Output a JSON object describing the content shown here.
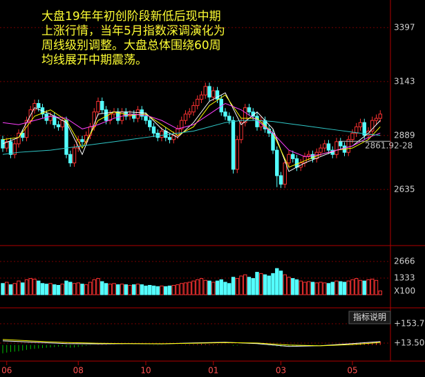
{
  "chart_data": [
    {
      "type": "candlestick",
      "annotation": [
        "大盘19年年初创阶段新低后现中期",
        "上涨行情，当年5月指数深调演化为",
        "周线级别调整。大盘总体围绕60周",
        "均线展开中期震荡。"
      ],
      "ylim": [
        2371,
        3527
      ],
      "yticks": [
        2635,
        2889,
        3143,
        3397
      ],
      "xticks": [
        {
          "value": 1,
          "label": "06"
        },
        {
          "value": 19,
          "label": "08"
        },
        {
          "value": 36,
          "label": "10"
        },
        {
          "value": 53,
          "label": "01"
        },
        {
          "value": 70,
          "label": "03"
        },
        {
          "value": 88,
          "label": "05"
        }
      ],
      "up_color": "#ff3232",
      "down_color": "#54ffff",
      "price_line": {
        "value": 2861.92,
        "label": "2861.92-28"
      },
      "candles": [
        [
          2870,
          2888,
          2812,
          2830
        ],
        [
          2830,
          2878,
          2812,
          2860
        ],
        [
          2860,
          2878,
          2782,
          2800
        ],
        [
          2800,
          2868,
          2782,
          2850
        ],
        [
          2850,
          2918,
          2832,
          2900
        ],
        [
          2900,
          2918,
          2862,
          2880
        ],
        [
          2880,
          2978,
          2862,
          2960
        ],
        [
          2960,
          3028,
          2942,
          3010
        ],
        [
          3010,
          3058,
          2992,
          3040
        ],
        [
          3040,
          3058,
          3002,
          3020
        ],
        [
          3020,
          3038,
          2972,
          2990
        ],
        [
          2990,
          3008,
          2942,
          2960
        ],
        [
          2960,
          2998,
          2942,
          2980
        ],
        [
          2980,
          2998,
          2922,
          2940
        ],
        [
          2940,
          2958,
          2912,
          2930
        ],
        [
          2930,
          2978,
          2912,
          2960
        ],
        [
          2960,
          2978,
          2782,
          2800
        ],
        [
          2800,
          2818,
          2742,
          2760
        ],
        [
          2760,
          2848,
          2742,
          2830
        ],
        [
          2830,
          2888,
          2812,
          2870
        ],
        [
          2870,
          2888,
          2842,
          2860
        ],
        [
          2860,
          2908,
          2842,
          2890
        ],
        [
          2890,
          2948,
          2872,
          2930
        ],
        [
          2930,
          3018,
          2912,
          3000
        ],
        [
          3000,
          3068,
          2982,
          3050
        ],
        [
          3050,
          3068,
          2992,
          3010
        ],
        [
          3010,
          3028,
          2942,
          2960
        ],
        [
          2960,
          3008,
          2942,
          2990
        ],
        [
          2990,
          3018,
          2972,
          3000
        ],
        [
          3000,
          3018,
          2942,
          2960
        ],
        [
          2960,
          3018,
          2942,
          3000
        ],
        [
          3000,
          3018,
          2962,
          2980
        ],
        [
          2980,
          3008,
          2962,
          2990
        ],
        [
          2990,
          3008,
          2952,
          2970
        ],
        [
          2970,
          3028,
          2952,
          3010
        ],
        [
          3010,
          3028,
          2962,
          2980
        ],
        [
          2980,
          2998,
          2942,
          2960
        ],
        [
          2960,
          2978,
          2912,
          2930
        ],
        [
          2930,
          2948,
          2882,
          2900
        ],
        [
          2900,
          2918,
          2862,
          2880
        ],
        [
          2880,
          2928,
          2862,
          2910
        ],
        [
          2910,
          2928,
          2862,
          2880
        ],
        [
          2880,
          2898,
          2852,
          2870
        ],
        [
          2870,
          2908,
          2852,
          2890
        ],
        [
          2890,
          2938,
          2872,
          2920
        ],
        [
          2920,
          2978,
          2902,
          2960
        ],
        [
          2960,
          3008,
          2942,
          2990
        ],
        [
          2990,
          3018,
          2972,
          3000
        ],
        [
          3000,
          3048,
          2982,
          3030
        ],
        [
          3030,
          3078,
          3012,
          3060
        ],
        [
          3060,
          3098,
          3042,
          3080
        ],
        [
          3080,
          3138,
          3062,
          3120
        ],
        [
          3120,
          3138,
          3052,
          3070
        ],
        [
          3070,
          3118,
          3052,
          3100
        ],
        [
          3100,
          3118,
          3042,
          3060
        ],
        [
          3060,
          3078,
          2982,
          3000
        ],
        [
          3000,
          3018,
          2962,
          2980
        ],
        [
          2980,
          2998,
          2942,
          2960
        ],
        [
          2960,
          2978,
          2710,
          2730
        ],
        [
          2730,
          2888,
          2712,
          2870
        ],
        [
          2870,
          2968,
          2852,
          2950
        ],
        [
          2950,
          3038,
          2932,
          3020
        ],
        [
          3020,
          3038,
          2982,
          3000
        ],
        [
          3000,
          3018,
          2962,
          2980
        ],
        [
          2980,
          2998,
          2912,
          2930
        ],
        [
          2930,
          2978,
          2912,
          2960
        ],
        [
          2960,
          2978,
          2902,
          2920
        ],
        [
          2920,
          2938,
          2882,
          2900
        ],
        [
          2900,
          2918,
          2802,
          2820
        ],
        [
          2820,
          2838,
          2646,
          2700
        ],
        [
          2700,
          2718,
          2642,
          2660
        ],
        [
          2660,
          2778,
          2642,
          2760
        ],
        [
          2760,
          2818,
          2742,
          2800
        ],
        [
          2800,
          2818,
          2762,
          2780
        ],
        [
          2780,
          2798,
          2722,
          2740
        ],
        [
          2740,
          2778,
          2722,
          2760
        ],
        [
          2760,
          2808,
          2742,
          2790
        ],
        [
          2790,
          2818,
          2772,
          2800
        ],
        [
          2800,
          2818,
          2762,
          2780
        ],
        [
          2780,
          2828,
          2762,
          2810
        ],
        [
          2810,
          2848,
          2792,
          2830
        ],
        [
          2830,
          2868,
          2812,
          2850
        ],
        [
          2850,
          2868,
          2802,
          2820
        ],
        [
          2820,
          2838,
          2782,
          2800
        ],
        [
          2800,
          2878,
          2782,
          2860
        ],
        [
          2860,
          2878,
          2822,
          2840
        ],
        [
          2840,
          2858,
          2792,
          2810
        ],
        [
          2810,
          2888,
          2792,
          2870
        ],
        [
          2870,
          2918,
          2852,
          2900
        ],
        [
          2900,
          2948,
          2882,
          2930
        ],
        [
          2930,
          2968,
          2912,
          2950
        ],
        [
          2950,
          2968,
          2872,
          2890
        ],
        [
          2890,
          2928,
          2872,
          2910
        ],
        [
          2910,
          2978,
          2892,
          2960
        ],
        [
          2960,
          2988,
          2942,
          2970
        ],
        [
          2970,
          3008,
          2952,
          2990
        ]
      ],
      "lines": {
        "x": [
          0,
          4,
          8,
          12,
          16,
          20,
          24,
          28,
          32,
          36,
          40,
          44,
          48,
          52,
          56,
          60,
          64,
          68,
          72,
          76,
          80,
          84,
          88,
          92,
          95
        ],
        "series": [
          {
            "color": "#ffffff",
            "values": [
              2850,
              2880,
              3020,
              2990,
              2950,
              2800,
              2990,
              3000,
              3000,
              2995,
              2920,
              2880,
              2950,
              3050,
              3090,
              2940,
              3000,
              2920,
              2720,
              2760,
              2790,
              2820,
              2840,
              2900,
              2960
            ]
          },
          {
            "color": "#ffff00",
            "values": [
              2870,
              2880,
              2980,
              3010,
              2960,
              2830,
              2960,
              3000,
              2985,
              2990,
              2940,
              2890,
              2930,
              3030,
              3080,
              2970,
              2970,
              2900,
              2740,
              2770,
              2800,
              2820,
              2830,
              2870,
              2930
            ]
          },
          {
            "color": "#ff40ff",
            "values": [
              2950,
              2940,
              2960,
              2980,
              2970,
              2920,
              2940,
              2970,
              2990,
              2985,
              2960,
              2920,
              2940,
              2990,
              3040,
              3010,
              2960,
              2900,
              2820,
              2790,
              2800,
              2820,
              2840,
              2880,
              2900
            ]
          },
          {
            "color": "#30c8c8",
            "values": [
              2800,
              2810,
              2815,
              2820,
              2830,
              2840,
              2850,
              2860,
              2870,
              2880,
              2890,
              2900,
              2910,
              2930,
              2950,
              2960,
              2960,
              2955,
              2945,
              2935,
              2925,
              2915,
              2905,
              2895,
              2890
            ]
          }
        ]
      }
    },
    {
      "type": "bar",
      "ylim": [
        0,
        3830
      ],
      "yticks": [
        1333,
        2666
      ],
      "unit_label": "X100",
      "values": [
        900,
        1000,
        800,
        900,
        1100,
        950,
        1200,
        1300,
        1250,
        1100,
        900,
        850,
        900,
        800,
        750,
        850,
        1100,
        1000,
        900,
        950,
        850,
        800,
        1000,
        1200,
        1300,
        1050,
        900,
        850,
        900,
        800,
        850,
        800,
        750,
        800,
        850,
        800,
        700,
        750,
        700,
        650,
        700,
        650,
        700,
        750,
        800,
        900,
        950,
        1000,
        1100,
        1200,
        1300,
        1150,
        1100,
        1000,
        1100,
        1200,
        1000,
        900,
        1400,
        1300,
        1500,
        1600,
        1400,
        1300,
        1800,
        1700,
        1600,
        1500,
        1700,
        2100,
        1900,
        1600,
        1400,
        1300,
        1200,
        1100,
        1000,
        1050,
        1000,
        950,
        1000,
        950,
        900,
        1000,
        1100,
        1050,
        1000,
        1100,
        1200,
        1300,
        1150,
        1100,
        1200,
        1250,
        1150,
        300
      ]
    },
    {
      "type": "macd",
      "ylim": [
        -106.5,
        233.5
      ],
      "yticks": [
        {
          "value": 13.5,
          "label": "+13.50"
        },
        {
          "value": 153.7,
          "label": "+153.7"
        }
      ],
      "button_label": "指标说明",
      "values": [
        -60,
        -55,
        -50,
        -48,
        -45,
        -40,
        -35,
        -30,
        -28,
        -25,
        -22,
        -20,
        -18,
        -15,
        -12,
        -10,
        -15,
        -20,
        -18,
        -14,
        -10,
        -6,
        -3,
        0,
        2,
        3,
        2,
        1,
        1,
        0,
        1,
        0,
        0,
        -1,
        0,
        -1,
        -2,
        -2,
        -3,
        -3,
        -2,
        -2,
        -1,
        0,
        1,
        2,
        3,
        4,
        5,
        6,
        7,
        6,
        5,
        4,
        3,
        2,
        1,
        0,
        -5,
        -4,
        -2,
        0,
        1,
        1,
        0,
        -1,
        -2,
        -3,
        -5,
        -10,
        -12,
        -10,
        -9,
        -8,
        -8,
        -7,
        -6,
        -5,
        -4,
        -3,
        -2,
        -1,
        0,
        2,
        4,
        5,
        6,
        8,
        10,
        14,
        18,
        20,
        16,
        18,
        22,
        26
      ],
      "lines": {
        "x": [
          0,
          8,
          16,
          24,
          32,
          40,
          48,
          56,
          64,
          72,
          80,
          88,
          95
        ],
        "series": [
          {
            "color": "#ffffff",
            "values": [
              30,
              20,
              10,
              8,
              10,
              8,
              15,
              20,
              10,
              -10,
              -5,
              10,
              25
            ]
          },
          {
            "color": "#ffff00",
            "values": [
              40,
              28,
              18,
              12,
              10,
              9,
              12,
              17,
              14,
              0,
              -6,
              3,
              18
            ]
          }
        ]
      }
    }
  ]
}
